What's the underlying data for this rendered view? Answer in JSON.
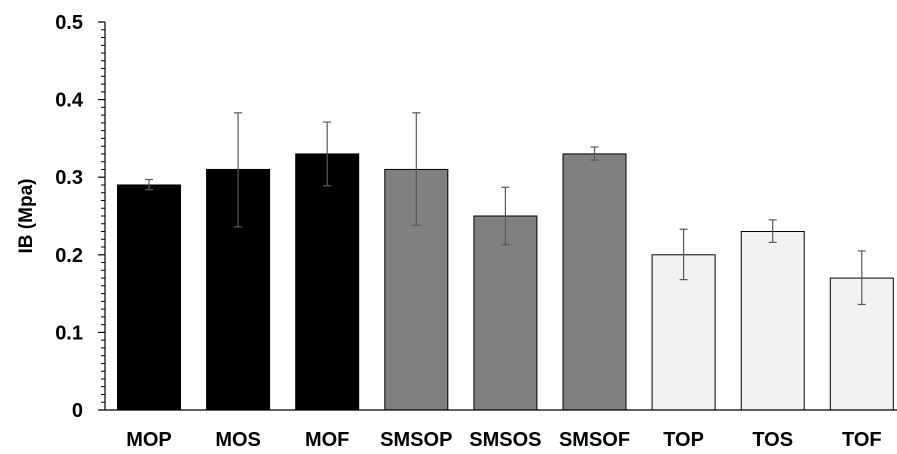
{
  "chart_data": {
    "type": "bar",
    "title": "",
    "xlabel": "",
    "ylabel": "IB (Mpa)",
    "ylim": [
      0,
      0.5
    ],
    "yticks": [
      "0",
      "0.1",
      "0.2",
      "0.3",
      "0.4",
      "0.5"
    ],
    "grid": false,
    "categories": [
      "MOP",
      "MOS",
      "MOF",
      "SMSOP",
      "SMSOS",
      "SMSOF",
      "TOP",
      "TOS",
      "TOF"
    ],
    "values": [
      0.29,
      0.31,
      0.33,
      0.31,
      0.25,
      0.33,
      0.2,
      0.23,
      0.17
    ],
    "error_low": [
      0.284,
      0.236,
      0.289,
      0.238,
      0.213,
      0.322,
      0.168,
      0.216,
      0.136
    ],
    "error_high": [
      0.297,
      0.383,
      0.371,
      0.383,
      0.287,
      0.339,
      0.233,
      0.245,
      0.205
    ],
    "bar_colors": [
      "#000000",
      "#000000",
      "#000000",
      "#808080",
      "#808080",
      "#808080",
      "#f2f2f2",
      "#f2f2f2",
      "#f2f2f2"
    ]
  }
}
